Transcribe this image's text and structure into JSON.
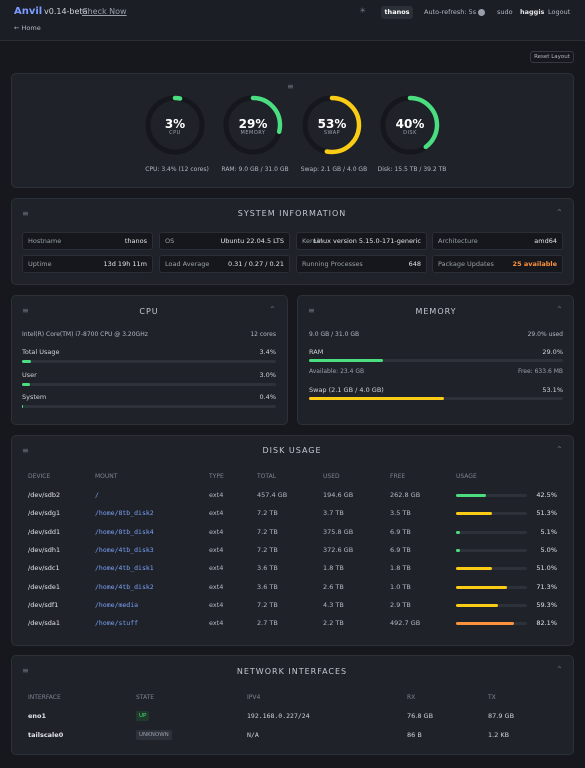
{
  "header": {
    "brand": "Anvil",
    "version": "v0.14-beta",
    "check": "Check Now",
    "host": "thanos",
    "refresh": "Auto-refresh: 5s",
    "sudo": "sudo",
    "user": "haggis",
    "logout": "Logout",
    "back": "← Home"
  },
  "reset": "Reset Layout",
  "gauges": [
    {
      "value": 3,
      "label": "3%",
      "name": "CPU",
      "detail": "CPU: 3.4% (12 cores)"
    },
    {
      "value": 29,
      "label": "29%",
      "name": "MEMORY",
      "detail": "RAM: 9.0 GB / 31.0 GB"
    },
    {
      "value": 53,
      "label": "53%",
      "name": "SWAP",
      "detail": "Swap: 2.1 GB / 4.0 GB"
    },
    {
      "value": 40,
      "label": "40%",
      "name": "DISK",
      "detail": "Disk: 15.5 TB / 39.2 TB"
    }
  ],
  "system": {
    "title": "SYSTEM INFORMATION",
    "items": [
      {
        "label": "Hostname",
        "value": "thanos"
      },
      {
        "label": "OS",
        "value": "Ubuntu 22.04.5 LTS"
      },
      {
        "label": "Kernel",
        "value": "Linux version 5.15.0-171-generic"
      },
      {
        "label": "Architecture",
        "value": "amd64"
      },
      {
        "label": "Uptime",
        "value": "13d 19h 11m"
      },
      {
        "label": "Load Average",
        "value": "0.31 / 0.27 / 0.21"
      },
      {
        "label": "Running Processes",
        "value": "648"
      },
      {
        "label": "Package Updates",
        "value": "25 available"
      }
    ]
  },
  "cpu": {
    "title": "CPU",
    "model": "Intel(R) Core(TM) i7-8700 CPU @ 3.20GHz",
    "cores": "12 cores",
    "bars": [
      {
        "label": "Total Usage",
        "value": 3.4,
        "text": "3.4%"
      },
      {
        "label": "User",
        "value": 3.0,
        "text": "3.0%"
      },
      {
        "label": "System",
        "value": 0.4,
        "text": "0.4%"
      }
    ]
  },
  "memory": {
    "title": "MEMORY",
    "summary": "9.0 GB / 31.0 GB",
    "used": "29.0% used",
    "available": "Available: 23.4 GB",
    "free": "Free: 633.6 MB",
    "bars": [
      {
        "label": "RAM",
        "value": 29.0,
        "text": "29.0%"
      },
      {
        "label": "Swap (2.1 GB / 4.0 GB)",
        "value": 53.1,
        "text": "53.1%"
      }
    ]
  },
  "disk": {
    "title": "DISK USAGE",
    "columns": [
      "DEVICE",
      "MOUNT",
      "TYPE",
      "TOTAL",
      "USED",
      "FREE",
      "USAGE"
    ],
    "rows": [
      {
        "cells": [
          "/dev/sdb2",
          "/",
          "ext4",
          "457.4 GB",
          "194.6 GB",
          "262.8 GB"
        ],
        "usage": 42.5,
        "usage_label": "42.5%"
      },
      {
        "cells": [
          "/dev/sdg1",
          "/home/8tb_disk2",
          "ext4",
          "7.2 TB",
          "3.7 TB",
          "3.5 TB"
        ],
        "usage": 51.3,
        "usage_label": "51.3%"
      },
      {
        "cells": [
          "/dev/sdd1",
          "/home/8tb_disk4",
          "ext4",
          "7.2 TB",
          "375.8 GB",
          "6.9 TB"
        ],
        "usage": 5.1,
        "usage_label": "5.1%"
      },
      {
        "cells": [
          "/dev/sdh1",
          "/home/4tb_disk3",
          "ext4",
          "7.2 TB",
          "372.6 GB",
          "6.9 TB"
        ],
        "usage": 5.0,
        "usage_label": "5.0%"
      },
      {
        "cells": [
          "/dev/sdc1",
          "/home/4tb_disk1",
          "ext4",
          "3.6 TB",
          "1.8 TB",
          "1.8 TB"
        ],
        "usage": 51.0,
        "usage_label": "51.0%"
      },
      {
        "cells": [
          "/dev/sde1",
          "/home/4tb_disk2",
          "ext4",
          "3.6 TB",
          "2.6 TB",
          "1.0 TB"
        ],
        "usage": 71.3,
        "usage_label": "71.3%"
      },
      {
        "cells": [
          "/dev/sdf1",
          "/home/media",
          "ext4",
          "7.2 TB",
          "4.3 TB",
          "2.9 TB"
        ],
        "usage": 59.3,
        "usage_label": "59.3%"
      },
      {
        "cells": [
          "/dev/sda1",
          "/home/stuff",
          "ext4",
          "2.7 TB",
          "2.2 TB",
          "492.7 GB"
        ],
        "usage": 82.1,
        "usage_label": "82.1%"
      }
    ]
  },
  "network": {
    "title": "NETWORK INTERFACES",
    "columns": [
      "INTERFACE",
      "STATE",
      "IPV4",
      "RX",
      "TX"
    ],
    "rows": [
      [
        "eno1",
        "UP",
        "192.168.0.227/24",
        "76.8 GB",
        "87.9 GB"
      ],
      [
        "tailscale0",
        "UNKNOWN",
        "N/A",
        "86 B",
        "1.2 KB"
      ]
    ]
  }
}
